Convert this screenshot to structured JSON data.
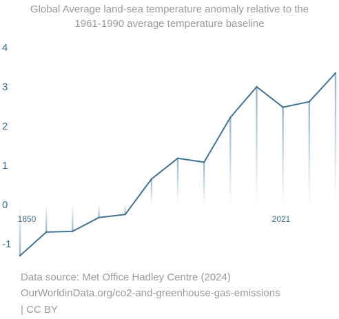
{
  "chart_data": {
    "type": "line",
    "title": "Global Average land-sea temperature anomaly relative to the",
    "subtitle": "1961-1990 average temperature baseline",
    "xlabel": "",
    "ylabel": "",
    "x_tick_labels": [
      "1850",
      "2021"
    ],
    "y_ticks": [
      "4",
      "3",
      "2",
      "1",
      "0",
      "-1"
    ],
    "ylim": [
      -1.35,
      4.1
    ],
    "grid": false,
    "series": [
      {
        "color": "#3f7295",
        "values": [
          -1.3,
          -0.7,
          -0.68,
          -0.33,
          -0.25,
          0.65,
          1.18,
          1.08,
          2.22,
          3.0,
          2.48,
          2.62,
          3.35
        ]
      }
    ]
  },
  "footer": {
    "line1": "Data source: Met Office Hadley Centre (2024)",
    "line2": "OurWorldinData.org/co2-and-greenhouse-gas-emissions",
    "line3": "| CC BY"
  }
}
